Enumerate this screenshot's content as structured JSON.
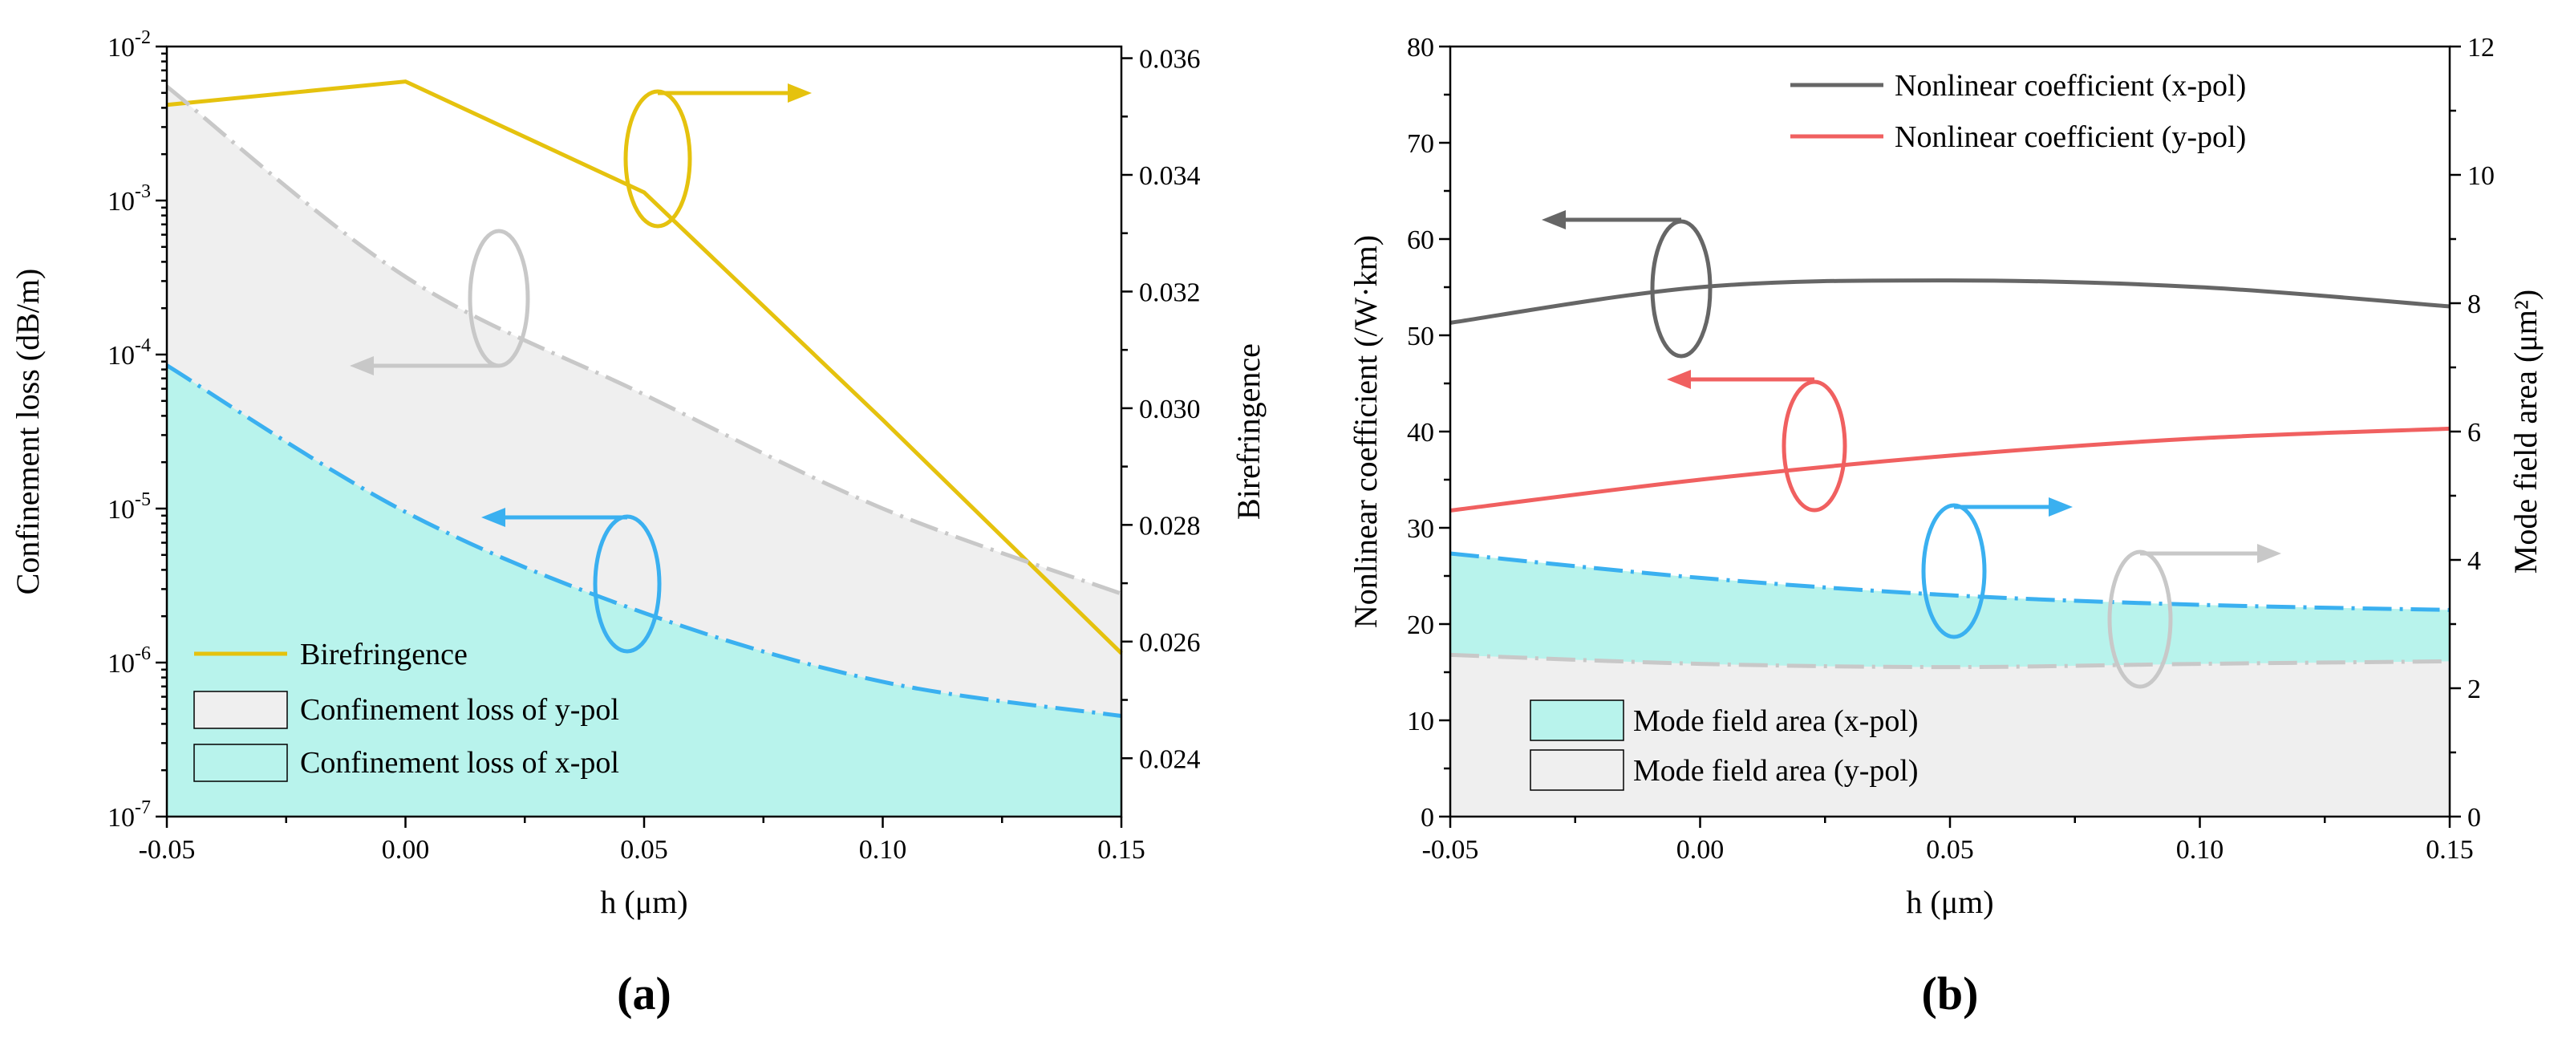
{
  "chart_data": [
    {
      "panel": "(a)",
      "type": "line",
      "xlabel": "h (μm)",
      "ylabel_left": "Confinement loss (dB/m)",
      "ylabel_right": "Birefringence",
      "x_ticks": [
        "-0.05",
        "0.00",
        "0.05",
        "0.10",
        "0.15"
      ],
      "y_left_ticks": [
        "10-7",
        "10-6",
        "10-5",
        "10-4",
        "10-3",
        "10-2"
      ],
      "y_right_ticks": [
        "0.024",
        "0.026",
        "0.028",
        "0.030",
        "0.032",
        "0.034",
        "0.036"
      ],
      "xlim": [
        -0.05,
        0.15
      ],
      "ylim_left_log10": [
        -7,
        -2
      ],
      "ylim_right": [
        0.023,
        0.0362
      ],
      "series": [
        {
          "name": "Birefringence",
          "axis": "right",
          "style": "solid",
          "color": "#e5c20e",
          "x": [
            -0.05,
            0.0,
            0.05,
            0.1,
            0.15
          ],
          "y": [
            0.0352,
            0.0356,
            0.0337,
            0.0298,
            0.0258
          ]
        },
        {
          "name": "Confinement loss of y-pol",
          "axis": "left",
          "style": "dash-dot",
          "color": "#c8c8c8",
          "fill": "#efefef",
          "x": [
            -0.05,
            0.0,
            0.05,
            0.1,
            0.15
          ],
          "y": [
            0.0055,
            0.00032,
            5.5e-05,
            1e-05,
            2.8e-06
          ]
        },
        {
          "name": "Confinement loss of x-pol",
          "axis": "left",
          "style": "dash-dot",
          "color": "#3ab0f0",
          "fill": "#b8f3ec",
          "x": [
            -0.05,
            0.0,
            0.05,
            0.1,
            0.15
          ],
          "y": [
            8.5e-05,
            9.5e-06,
            2.1e-06,
            7.5e-07,
            4.5e-07
          ]
        }
      ],
      "legend": {
        "birefringence": "Birefringence",
        "y_pol": "Confinement loss of y-pol",
        "x_pol": "Confinement loss of x-pol"
      }
    },
    {
      "panel": "(b)",
      "type": "line",
      "xlabel": "h (μm)",
      "ylabel_left": "Nonlinear coefficient  (/W·km)",
      "ylabel_right": "Mode field area (μm²)",
      "x_ticks": [
        "-0.05",
        "0.00",
        "0.05",
        "0.10",
        "0.15"
      ],
      "y_left_ticks": [
        "0",
        "10",
        "20",
        "30",
        "40",
        "50",
        "60",
        "70",
        "80"
      ],
      "y_right_ticks": [
        "0",
        "2",
        "4",
        "6",
        "8",
        "10",
        "12"
      ],
      "xlim": [
        -0.05,
        0.15
      ],
      "ylim_left": [
        0,
        80
      ],
      "ylim_right": [
        0,
        12
      ],
      "series": [
        {
          "name": "Nonlinear coefficient (x-pol)",
          "axis": "left",
          "style": "solid",
          "color": "#666666",
          "x": [
            -0.05,
            0.0,
            0.05,
            0.1,
            0.15
          ],
          "y": [
            51.3,
            55.0,
            55.7,
            55.0,
            53.0
          ]
        },
        {
          "name": "Nonlinear coefficient (y-pol)",
          "axis": "left",
          "style": "solid",
          "color": "#f06060",
          "x": [
            -0.05,
            0.0,
            0.05,
            0.1,
            0.15
          ],
          "y": [
            31.8,
            35.0,
            37.5,
            39.3,
            40.3
          ]
        },
        {
          "name": "Mode field area (x-pol)",
          "axis": "right",
          "style": "dash-dot",
          "color": "#3ab0f0",
          "fill": "#b8f3ec",
          "x": [
            -0.05,
            0.0,
            0.05,
            0.1,
            0.15
          ],
          "y": [
            4.1,
            3.72,
            3.45,
            3.3,
            3.22
          ]
        },
        {
          "name": "Mode field area (y-pol)",
          "axis": "right",
          "style": "dash-dot",
          "color": "#c8c8c8",
          "fill": "#efefef",
          "x": [
            -0.05,
            0.0,
            0.05,
            0.1,
            0.15
          ],
          "y": [
            2.52,
            2.38,
            2.33,
            2.38,
            2.42
          ]
        }
      ],
      "legend": {
        "nl_x": "Nonlinear coefficient (x-pol)",
        "nl_y": "Nonlinear coefficient (y-pol)",
        "mfa_x": "Mode field area (x-pol)",
        "mfa_y": "Mode field area (y-pol)"
      }
    }
  ]
}
